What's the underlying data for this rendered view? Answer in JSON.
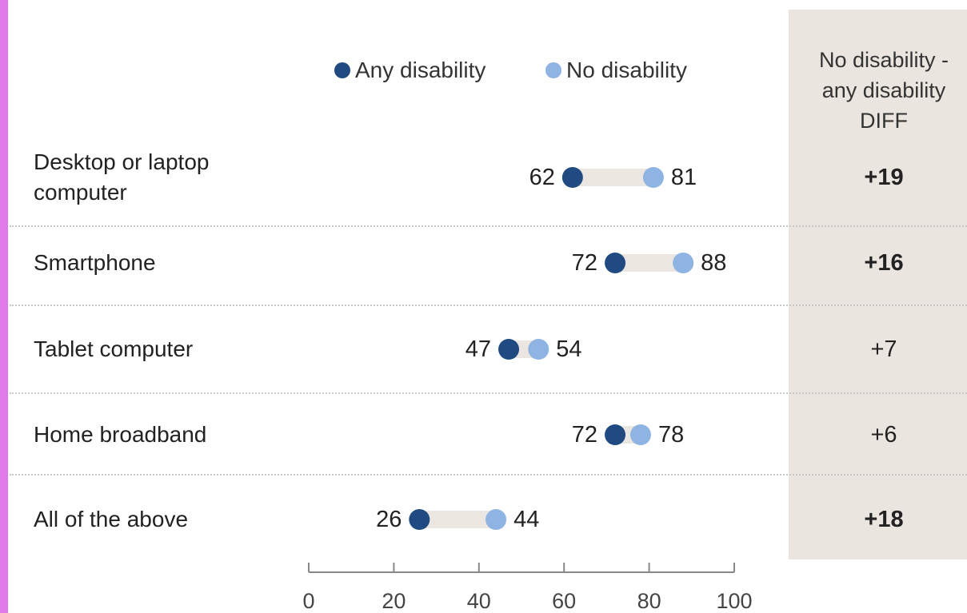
{
  "chart_data": {
    "type": "dot",
    "categories": [
      [
        "Desktop or laptop",
        "computer"
      ],
      [
        "Smartphone"
      ],
      [
        "Tablet computer"
      ],
      [
        "Home broadband"
      ],
      [
        "All of the above"
      ]
    ],
    "series": [
      {
        "name": "Any disability",
        "values": [
          62,
          72,
          47,
          72,
          26
        ]
      },
      {
        "name": "No disability",
        "values": [
          81,
          88,
          54,
          78,
          44
        ]
      }
    ],
    "diff_header": [
      "No disability -",
      "any disability",
      "DIFF"
    ],
    "diff_values": [
      "+19",
      "+16",
      "+7",
      "+6",
      "+18"
    ],
    "diff_bold": [
      true,
      true,
      false,
      false,
      true
    ],
    "xlim": [
      0,
      100
    ],
    "x_ticks": [
      "0",
      "20",
      "40",
      "60",
      "80",
      "100"
    ],
    "legend_position": "top-center",
    "title": "",
    "xlabel": "",
    "ylabel": ""
  },
  "colors": {
    "any_disability": "#1f4b82",
    "no_disability": "#8db4e2",
    "connector": "#ebe7e0",
    "diff_panel": "#eae6df",
    "left_strip": "#e079e9",
    "axis": "#888888"
  }
}
